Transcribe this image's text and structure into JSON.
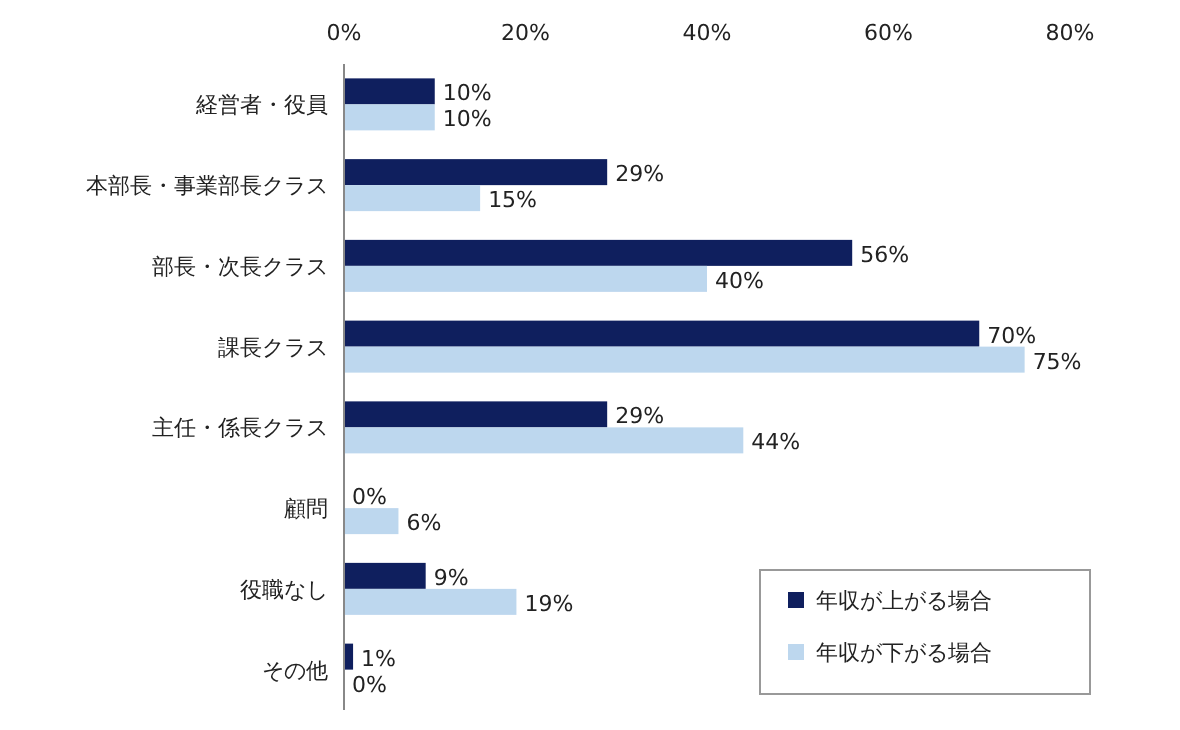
{
  "chart_data": {
    "type": "bar",
    "orientation": "horizontal",
    "categories": [
      "経営者・役員",
      "本部長・事業部長クラス",
      "部長・次長クラス",
      "課長クラス",
      "主任・係長クラス",
      "顧問",
      "役職なし",
      "その他"
    ],
    "series": [
      {
        "name": "年収が上がる場合",
        "color": "#0f1f5e",
        "values": [
          10,
          29,
          56,
          70,
          29,
          0,
          9,
          1
        ],
        "value_labels": [
          "10%",
          "29%",
          "56%",
          "70%",
          "29%",
          "0%",
          "9%",
          "1%"
        ]
      },
      {
        "name": "年収が下がる場合",
        "color": "#bdd7ee",
        "values": [
          10,
          15,
          40,
          75,
          44,
          6,
          19,
          0
        ],
        "value_labels": [
          "10%",
          "15%",
          "40%",
          "75%",
          "44%",
          "6%",
          "19%",
          "0%"
        ]
      }
    ],
    "xlim": [
      0,
      80
    ],
    "xticks": [
      {
        "value": 0,
        "label": "0%"
      },
      {
        "value": 20,
        "label": "20%"
      },
      {
        "value": 40,
        "label": "40%"
      },
      {
        "value": 60,
        "label": "60%"
      },
      {
        "value": 80,
        "label": "80%"
      }
    ],
    "legend": "bottom right"
  }
}
